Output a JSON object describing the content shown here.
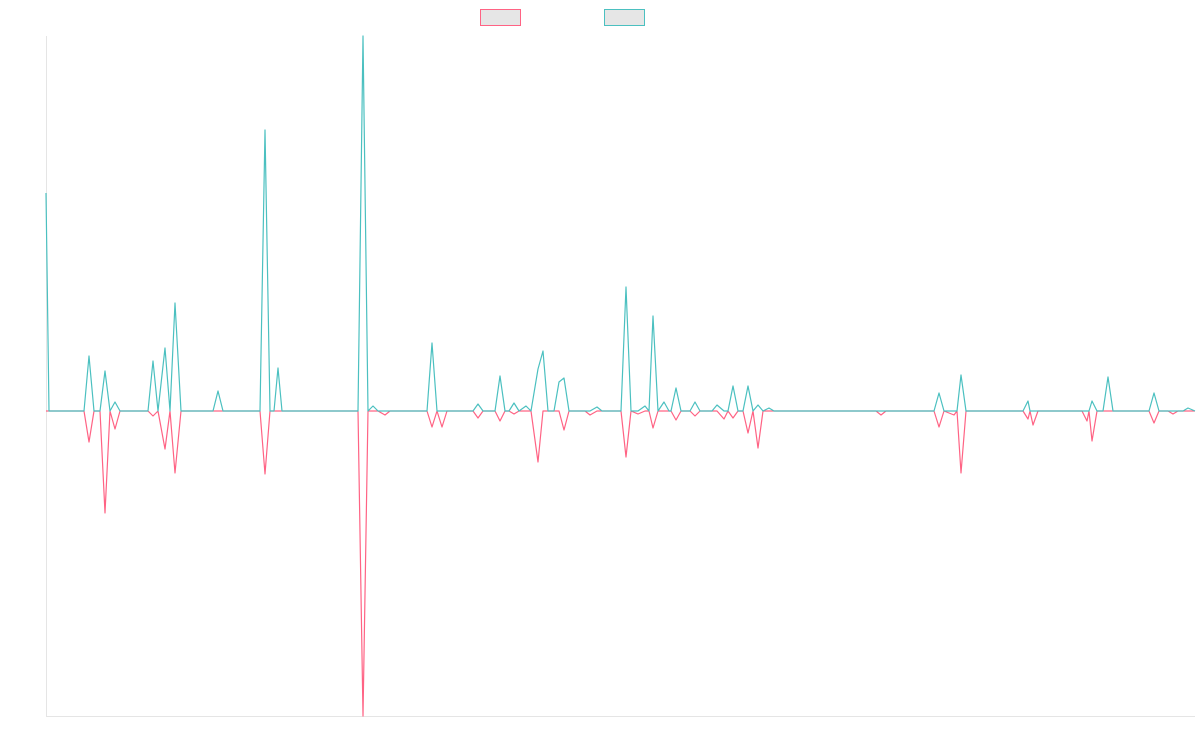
{
  "chart_data": {
    "type": "line",
    "x": [
      46,
      49,
      84,
      89,
      94,
      100,
      105,
      110,
      115,
      120,
      148,
      153,
      158,
      165,
      170,
      175,
      181,
      213,
      218,
      223,
      260,
      265,
      270,
      274,
      278,
      282,
      358,
      363,
      368,
      373,
      378,
      385,
      390,
      427,
      432,
      437,
      442,
      447,
      473,
      478,
      483,
      495,
      500,
      505,
      509,
      514,
      519,
      526,
      531,
      538,
      543,
      548,
      554,
      559,
      564,
      569,
      585,
      590,
      597,
      602,
      621,
      626,
      631,
      638,
      645,
      649,
      653,
      658,
      664,
      669,
      671,
      676,
      681,
      690,
      695,
      700,
      712,
      717,
      724,
      728,
      733,
      738,
      743,
      748,
      753,
      758,
      763,
      769,
      774,
      876,
      881,
      886,
      934,
      939,
      944,
      954,
      957,
      961,
      966,
      1023,
      1028,
      1030,
      1033,
      1038,
      1082,
      1087,
      1089,
      1092,
      1097,
      1103,
      1108,
      1113,
      1149,
      1154,
      1159,
      1168,
      1173,
      1178,
      1183,
      1188,
      1195
    ],
    "xlim": [
      46,
      1195
    ],
    "ylim": [
      -305,
      375
    ],
    "series": [
      {
        "color": "#ff6384",
        "values": [
          0,
          0,
          0,
          -31,
          0,
          0,
          -102,
          0,
          -18,
          0,
          0,
          -5,
          0,
          -38,
          0,
          -62,
          0,
          0,
          0,
          0,
          0,
          -63,
          0,
          0,
          0,
          0,
          0,
          -305,
          0,
          0,
          0,
          -4,
          0,
          0,
          -16,
          0,
          -16,
          0,
          0,
          -7,
          0,
          0,
          -10,
          0,
          0,
          -3,
          0,
          0,
          0,
          -51,
          0,
          0,
          0,
          0,
          -19,
          0,
          0,
          -4,
          0,
          0,
          0,
          -46,
          0,
          -3,
          0,
          0,
          -17,
          0,
          0,
          0,
          0,
          -9,
          0,
          0,
          -5,
          0,
          0,
          0,
          -8,
          0,
          -7,
          0,
          0,
          -22,
          0,
          -37,
          0,
          0,
          0,
          0,
          -4,
          0,
          0,
          -16,
          0,
          -4,
          0,
          -62,
          0,
          0,
          -8,
          0,
          -14,
          0,
          0,
          -10,
          0,
          -30,
          0,
          0,
          0,
          0,
          0,
          -12,
          0,
          0,
          -3,
          0,
          0,
          0,
          0
        ]
      },
      {
        "color": "#4bc0c0",
        "values": [
          218,
          0,
          0,
          55,
          0,
          0,
          40,
          0,
          9,
          0,
          0,
          50,
          0,
          63,
          0,
          108,
          0,
          0,
          20,
          0,
          0,
          281,
          0,
          0,
          43,
          0,
          0,
          375,
          0,
          5,
          0,
          0,
          0,
          0,
          68,
          0,
          0,
          0,
          0,
          7,
          0,
          0,
          35,
          0,
          0,
          8,
          0,
          5,
          0,
          42,
          60,
          0,
          0,
          29,
          33,
          0,
          0,
          0,
          4,
          0,
          0,
          124,
          0,
          0,
          5,
          0,
          95,
          0,
          9,
          0,
          0,
          23,
          0,
          0,
          9,
          0,
          0,
          6,
          0,
          0,
          25,
          0,
          0,
          25,
          0,
          6,
          0,
          3,
          0,
          0,
          0,
          0,
          0,
          18,
          0,
          0,
          0,
          36,
          0,
          0,
          10,
          0,
          0,
          0,
          0,
          0,
          0,
          10,
          0,
          0,
          34,
          0,
          0,
          18,
          0,
          0,
          0,
          0,
          0,
          3,
          0
        ]
      }
    ]
  }
}
